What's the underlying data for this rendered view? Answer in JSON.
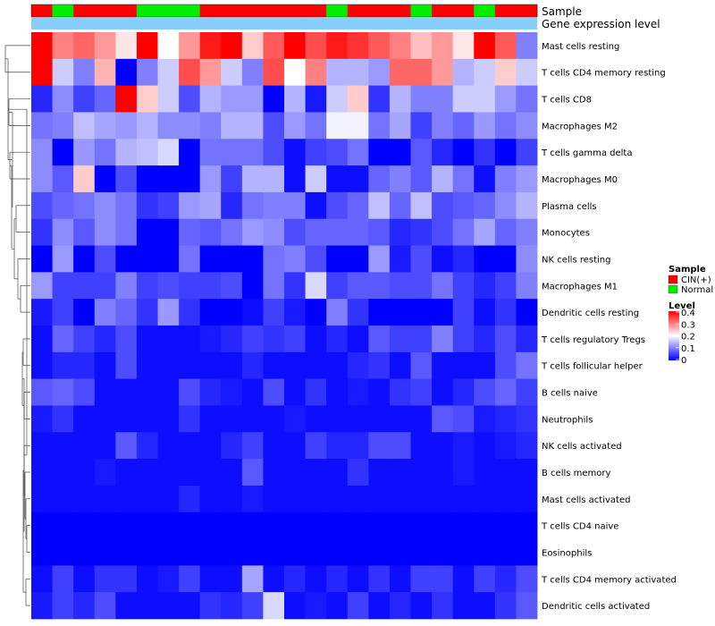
{
  "chart_data": {
    "type": "heatmap",
    "title": "",
    "annotation_tracks": [
      "Sample",
      "Gene expression level"
    ],
    "sample_groups": [
      "CIN(+)",
      "Normal",
      "CIN(+)",
      "CIN(+)",
      "CIN(+)",
      "Normal",
      "Normal",
      "Normal",
      "CIN(+)",
      "CIN(+)",
      "CIN(+)",
      "CIN(+)",
      "CIN(+)",
      "CIN(+)",
      "Normal",
      "CIN(+)",
      "CIN(+)",
      "CIN(+)",
      "Normal",
      "CIN(+)",
      "CIN(+)",
      "Normal",
      "CIN(+)",
      "CIN(+)"
    ],
    "rows": [
      "Mast cells resting",
      "T cells CD4 memory resting",
      "T cells CD8",
      "Macrophages M2",
      "T cells gamma delta",
      "Macrophages M0",
      "Plasma cells",
      "Monocytes",
      "NK cells resting",
      "Macrophages M1",
      "Dendritic cells resting",
      "T cells regulatory  Tregs",
      "T cells follicular helper",
      "B cells naive",
      "Neutrophils",
      "NK cells activated",
      "B cells memory",
      "Mast cells activated",
      "T cells CD4 naive",
      "Eosinophils",
      "T cells CD4 memory activated",
      "Dendritic cells activated"
    ],
    "values": [
      [
        0.4,
        0.3,
        0.32,
        0.28,
        0.22,
        0.4,
        0.2,
        0.28,
        0.38,
        0.4,
        0.24,
        0.33,
        0.4,
        0.34,
        0.38,
        0.36,
        0.33,
        0.3,
        0.25,
        0.28,
        0.22,
        0.4,
        0.33,
        0.1
      ],
      [
        0.4,
        0.16,
        0.1,
        0.26,
        0.0,
        0.1,
        0.16,
        0.34,
        0.28,
        0.16,
        0.1,
        0.34,
        0.2,
        0.3,
        0.14,
        0.14,
        0.12,
        0.32,
        0.32,
        0.28,
        0.14,
        0.16,
        0.24,
        0.16
      ],
      [
        0.03,
        0.11,
        0.05,
        0.08,
        0.4,
        0.24,
        0.16,
        0.06,
        0.14,
        0.12,
        0.12,
        0.0,
        0.14,
        0.02,
        0.16,
        0.24,
        0.04,
        0.14,
        0.1,
        0.1,
        0.16,
        0.16,
        0.12,
        0.09
      ],
      [
        0.09,
        0.1,
        0.15,
        0.13,
        0.12,
        0.14,
        0.11,
        0.11,
        0.1,
        0.14,
        0.14,
        0.06,
        0.12,
        0.09,
        0.19,
        0.19,
        0.09,
        0.13,
        0.05,
        0.1,
        0.08,
        0.12,
        0.09,
        0.11
      ],
      [
        0.11,
        0.0,
        0.12,
        0.09,
        0.14,
        0.15,
        0.17,
        0.0,
        0.09,
        0.09,
        0.09,
        0.06,
        0.01,
        0.05,
        0.06,
        0.09,
        0.0,
        0.0,
        0.07,
        0.03,
        0.0,
        0.04,
        0.0,
        0.05
      ],
      [
        0.11,
        0.07,
        0.24,
        0.0,
        0.06,
        0.0,
        0.0,
        0.0,
        0.12,
        0.05,
        0.14,
        0.14,
        0.01,
        0.16,
        0.01,
        0.01,
        0.08,
        0.1,
        0.07,
        0.14,
        0.09,
        0.01,
        0.1,
        0.12
      ],
      [
        0.06,
        0.08,
        0.09,
        0.11,
        0.09,
        0.04,
        0.05,
        0.12,
        0.13,
        0.03,
        0.09,
        0.1,
        0.1,
        0.01,
        0.06,
        0.08,
        0.15,
        0.08,
        0.15,
        0.06,
        0.07,
        0.08,
        0.11,
        0.14
      ],
      [
        0.04,
        0.11,
        0.07,
        0.11,
        0.09,
        0.0,
        0.0,
        0.08,
        0.07,
        0.09,
        0.12,
        0.11,
        0.06,
        0.08,
        0.08,
        0.08,
        0.07,
        0.03,
        0.04,
        0.06,
        0.09,
        0.13,
        0.08,
        0.1
      ],
      [
        0.0,
        0.12,
        0.0,
        0.06,
        0.0,
        0.0,
        0.0,
        0.09,
        0.0,
        0.0,
        0.0,
        0.09,
        0.1,
        0.06,
        0.0,
        0.0,
        0.12,
        0.02,
        0.06,
        0.01,
        0.03,
        0.0,
        0.0,
        0.11
      ],
      [
        0.12,
        0.05,
        0.05,
        0.05,
        0.1,
        0.05,
        0.06,
        0.05,
        0.05,
        0.06,
        0.0,
        0.09,
        0.04,
        0.17,
        0.05,
        0.07,
        0.07,
        0.06,
        0.06,
        0.09,
        0.05,
        0.03,
        0.05,
        0.1
      ],
      [
        0.02,
        0.05,
        0.0,
        0.1,
        0.08,
        0.04,
        0.12,
        0.04,
        0.0,
        0.0,
        0.01,
        0.05,
        0.02,
        0.0,
        0.1,
        0.04,
        0.0,
        0.0,
        0.0,
        0.0,
        0.05,
        0.01,
        0.04,
        0.0
      ],
      [
        0.01,
        0.08,
        0.05,
        0.03,
        0.06,
        0.01,
        0.01,
        0.01,
        0.02,
        0.03,
        0.05,
        0.04,
        0.05,
        0.01,
        0.03,
        0.01,
        0.07,
        0.05,
        0.05,
        0.1,
        0.05,
        0.03,
        0.06,
        0.03
      ],
      [
        0.01,
        0.03,
        0.03,
        0.01,
        0.06,
        0.01,
        0.01,
        0.01,
        0.01,
        0.01,
        0.03,
        0.01,
        0.01,
        0.01,
        0.01,
        0.03,
        0.04,
        0.01,
        0.07,
        0.01,
        0.01,
        0.01,
        0.06,
        0.09
      ],
      [
        0.07,
        0.08,
        0.06,
        0.01,
        0.01,
        0.01,
        0.01,
        0.06,
        0.03,
        0.02,
        0.01,
        0.06,
        0.01,
        0.04,
        0.01,
        0.02,
        0.01,
        0.04,
        0.05,
        0.01,
        0.03,
        0.06,
        0.08,
        0.05
      ],
      [
        0.02,
        0.04,
        0.01,
        0.01,
        0.01,
        0.01,
        0.01,
        0.04,
        0.01,
        0.01,
        0.01,
        0.01,
        0.02,
        0.01,
        0.01,
        0.01,
        0.01,
        0.01,
        0.01,
        0.07,
        0.06,
        0.02,
        0.03,
        0.04
      ],
      [
        0.01,
        0.01,
        0.01,
        0.01,
        0.07,
        0.03,
        0.01,
        0.01,
        0.01,
        0.03,
        0.05,
        0.01,
        0.01,
        0.05,
        0.03,
        0.03,
        0.06,
        0.06,
        0.01,
        0.01,
        0.02,
        0.01,
        0.02,
        0.03
      ],
      [
        0.01,
        0.01,
        0.01,
        0.02,
        0.01,
        0.01,
        0.01,
        0.01,
        0.01,
        0.01,
        0.07,
        0.01,
        0.01,
        0.01,
        0.01,
        0.04,
        0.01,
        0.01,
        0.01,
        0.01,
        0.02,
        0.01,
        0.01,
        0.01
      ],
      [
        0.01,
        0.01,
        0.01,
        0.01,
        0.01,
        0.01,
        0.01,
        0.03,
        0.01,
        0.01,
        0.02,
        0.01,
        0.01,
        0.01,
        0.01,
        0.01,
        0.01,
        0.01,
        0.01,
        0.01,
        0.01,
        0.01,
        0.01,
        0.01
      ],
      [
        0.0,
        0.0,
        0.0,
        0.0,
        0.0,
        0.0,
        0.0,
        0.0,
        0.0,
        0.0,
        0.0,
        0.0,
        0.0,
        0.0,
        0.0,
        0.0,
        0.0,
        0.0,
        0.0,
        0.0,
        0.0,
        0.0,
        0.0,
        0.0
      ],
      [
        0.0,
        0.0,
        0.0,
        0.0,
        0.0,
        0.0,
        0.0,
        0.0,
        0.0,
        0.0,
        0.0,
        0.0,
        0.0,
        0.0,
        0.0,
        0.0,
        0.0,
        0.0,
        0.0,
        0.0,
        0.0,
        0.0,
        0.0,
        0.0
      ],
      [
        0.01,
        0.05,
        0.01,
        0.04,
        0.04,
        0.01,
        0.02,
        0.05,
        0.01,
        0.01,
        0.13,
        0.01,
        0.03,
        0.01,
        0.03,
        0.01,
        0.04,
        0.01,
        0.05,
        0.05,
        0.01,
        0.05,
        0.03,
        0.06
      ],
      [
        0.02,
        0.05,
        0.03,
        0.06,
        0.01,
        0.01,
        0.01,
        0.01,
        0.04,
        0.03,
        0.05,
        0.17,
        0.01,
        0.02,
        0.01,
        0.05,
        0.01,
        0.03,
        0.01,
        0.04,
        0.01,
        0.01,
        0.04,
        0.07
      ]
    ],
    "color_scale": {
      "low": "#0000ff",
      "mid": "#ffffff",
      "high": "#ff0000",
      "min": 0,
      "max": 0.4,
      "mid_value": 0.2
    },
    "legends": {
      "sample": {
        "title": "Sample",
        "entries": [
          {
            "label": "CIN(+)",
            "color": "#ff0000"
          },
          {
            "label": "Normal",
            "color": "#00ee00"
          }
        ]
      },
      "level": {
        "title": "Level",
        "ticks": [
          "0.4",
          "0.3",
          "0.2",
          "0.1",
          "0"
        ],
        "tick_values": [
          0.4,
          0.3,
          0.2,
          0.1,
          0
        ]
      }
    },
    "expression_track_color": "#87cefa"
  }
}
